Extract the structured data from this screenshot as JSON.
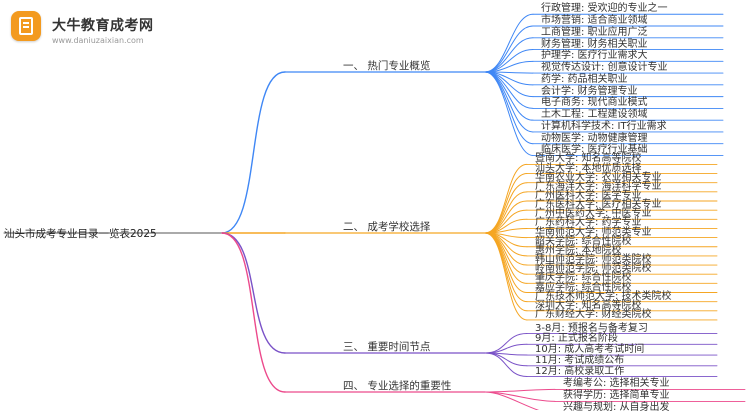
{
  "watermark": {
    "title": "大牛教育成考网",
    "url": "www.daniuzaixian.com"
  },
  "central": "汕头市成考专业目录一览表2025",
  "colors": {
    "blue": "#3f87f5",
    "orange": "#f5a623",
    "purple": "#7a52c7",
    "pink": "#ec4a8c"
  },
  "branches": [
    {
      "label": "一、 热门专业概览",
      "color_key": "blue",
      "items": [
        "行政管理: 受欢迎的专业之一",
        "市场营销: 适合商业领域",
        "工商管理: 职业应用广泛",
        "财务管理: 财务相关职业",
        "护理学: 医疗行业需求大",
        "视觉传达设计: 创意设计专业",
        "药学: 药品相关职业",
        "会计学: 财务管理专业",
        "电子商务: 现代商业模式",
        "土木工程: 工程建设领域",
        "计算机科学技术: IT行业需求",
        "动物医学: 动物健康管理",
        "临床医学: 医疗行业基础"
      ]
    },
    {
      "label": "二、 成考学校选择",
      "color_key": "orange",
      "items": [
        "暨南大学: 知名高等院校",
        "汕头大学: 本地优质选择",
        "华南农业大学: 农业相关专业",
        "广东海洋大学: 海洋科学专业",
        "广州医科大学: 医学专业",
        "广东医科大学: 医疗相关专业",
        "广州中医药大学: 中医专业",
        "广东药科大学: 药学专业",
        "华南师范大学: 师范类专业",
        "韶关学院: 综合性院校",
        "惠州学院: 本地院校",
        "韩山师范学院: 师范类院校",
        "岭南师范学院: 师范类院校",
        "肇庆学院: 综合性院校",
        "嘉应学院: 综合性院校",
        "广东技术师范大学: 技术类院校",
        "深圳大学: 知名高等院校",
        "广东财经大学: 财经类院校"
      ]
    },
    {
      "label": "三、 重要时间节点",
      "color_key": "purple",
      "items": [
        "3-8月: 预报名与备考复习",
        "9月: 正式报名阶段",
        "10月: 成人高考考试时间",
        "11月: 考试成绩公布",
        "12月: 高校录取工作"
      ]
    },
    {
      "label": "四、 专业选择的重要性",
      "color_key": "pink",
      "items": [
        "考编考公: 选择相关专业",
        "获得学历: 选择简单专业",
        "兴趣与规划: 从自身出发"
      ]
    }
  ]
}
